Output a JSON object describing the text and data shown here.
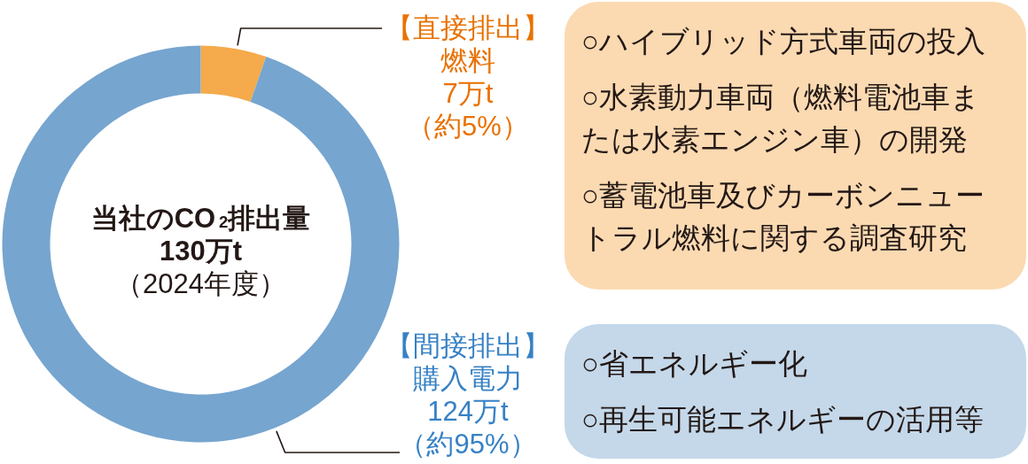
{
  "chart_data": [
    {
      "type": "donut",
      "title": "当社のCO$_{2}$排出量",
      "subtitle": "130万t",
      "annotations": [
        "（2024年度）",
        "（約5%）",
        "（約95%）"
      ],
      "categories": [
        "【直接排出】燃料",
        "【間接排出】購入電力"
      ],
      "values": [
        7,
        124
      ],
      "colors": [
        "#f5aa4b",
        "#76a5cf"
      ],
      "value_labels": [
        "7万t",
        "124万t"
      ]
    },
    {
      "type": "other",
      "annotations": [
        "○ハイブリッド方式車両の投入",
        "○水素動力車両（燃料電池車または水素エンジン車）の開発",
        "○蓄電池車及びカーボンニュートラル燃料に関する調査研究"
      ]
    },
    {
      "type": "other",
      "annotations": [
        "○省エネルギー化",
        "○再生可能エネルギーの活用等"
      ]
    }
  ]
}
